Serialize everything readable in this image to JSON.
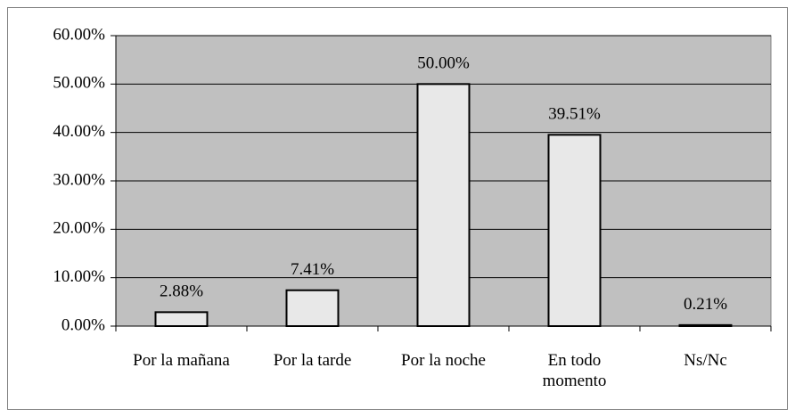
{
  "chart_data": {
    "type": "bar",
    "categories": [
      "Por la mañana",
      "Por la tarde",
      "Por la noche",
      "En todo momento",
      "Ns/Nc"
    ],
    "values": [
      2.88,
      7.41,
      50.0,
      39.51,
      0.21
    ],
    "value_labels": [
      "2.88%",
      "7.41%",
      "50.00%",
      "39.51%",
      "0.21%"
    ],
    "color": "#e8e8e8",
    "ylim": [
      0,
      60
    ],
    "yticks": [
      {
        "value": 0,
        "label": "0.00%"
      },
      {
        "value": 10,
        "label": "10.00%"
      },
      {
        "value": 20,
        "label": "20.00%"
      },
      {
        "value": 30,
        "label": "30.00%"
      },
      {
        "value": 40,
        "label": "40.00%"
      },
      {
        "value": 50,
        "label": "50.00%"
      },
      {
        "value": 60,
        "label": "60.00%"
      }
    ],
    "grid": true
  }
}
